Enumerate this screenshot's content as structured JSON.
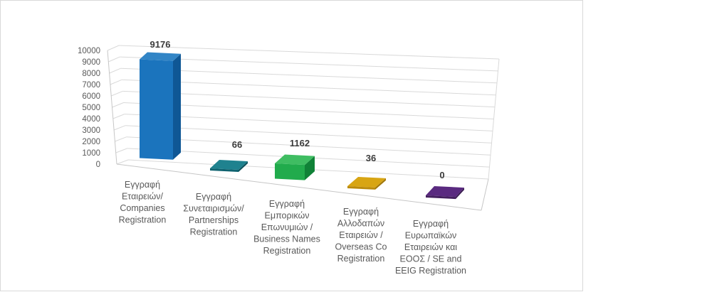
{
  "page": {
    "background": "#ffffff",
    "border_color": "#d9d9d9"
  },
  "chart_data": {
    "type": "bar",
    "style": "3d-column-perspective",
    "title": "",
    "legend": "none",
    "gridlines": true,
    "categories": [
      [
        "Εγγραφή",
        "Εταιρειών/",
        "Companies",
        "Registration"
      ],
      [
        "Εγγραφή",
        "Συνεταιρισμών/",
        "Partnerships",
        "Registration"
      ],
      [
        "Εγγραφή",
        "Εμπορικών",
        "Επωνυμιών /",
        "Business Names",
        "Registration"
      ],
      [
        "Εγγραφή",
        "Αλλοδαπών",
        "Εταιρειών /",
        "Overseas Co",
        "Registration"
      ],
      [
        "Εγγραφή",
        "Ευρωπαϊκών",
        "Εταιρειών και",
        "ΕΟΟΣ / SE and",
        "EEIG Registration"
      ]
    ],
    "category_slugs": [
      "companies",
      "partnerships",
      "business-names",
      "overseas-co",
      "se-eeig"
    ],
    "values": [
      9176,
      66,
      1162,
      36,
      0
    ],
    "data_labels": [
      "9176",
      "66",
      "1162",
      "36",
      "0"
    ],
    "y_axis": {
      "min": 0,
      "max": 10000,
      "step": 1000,
      "tick_labels": [
        "0",
        "1000",
        "2000",
        "3000",
        "4000",
        "5000",
        "6000",
        "7000",
        "8000",
        "9000",
        "10000"
      ]
    },
    "bar_colors": [
      {
        "front": "#1b74bd",
        "top": "#3285c6",
        "side": "#0f5795"
      },
      {
        "front": "#0f6370",
        "top": "#1f828f",
        "side": "#0c515c"
      },
      {
        "front": "#21ab4c",
        "top": "#3fbd62",
        "side": "#108237"
      },
      {
        "front": "#bb8a0b",
        "top": "#d8a513",
        "side": "#a2780a"
      },
      {
        "front": "#44205f",
        "top": "#5a2a80",
        "side": "#391b51"
      }
    ],
    "gridline_color": "#d9d9d9",
    "axis_edge_color": "#c6c6c6",
    "tick_text_color": "#595959",
    "category_text_color": "#595959",
    "data_label_color": "#3b3b3b"
  }
}
